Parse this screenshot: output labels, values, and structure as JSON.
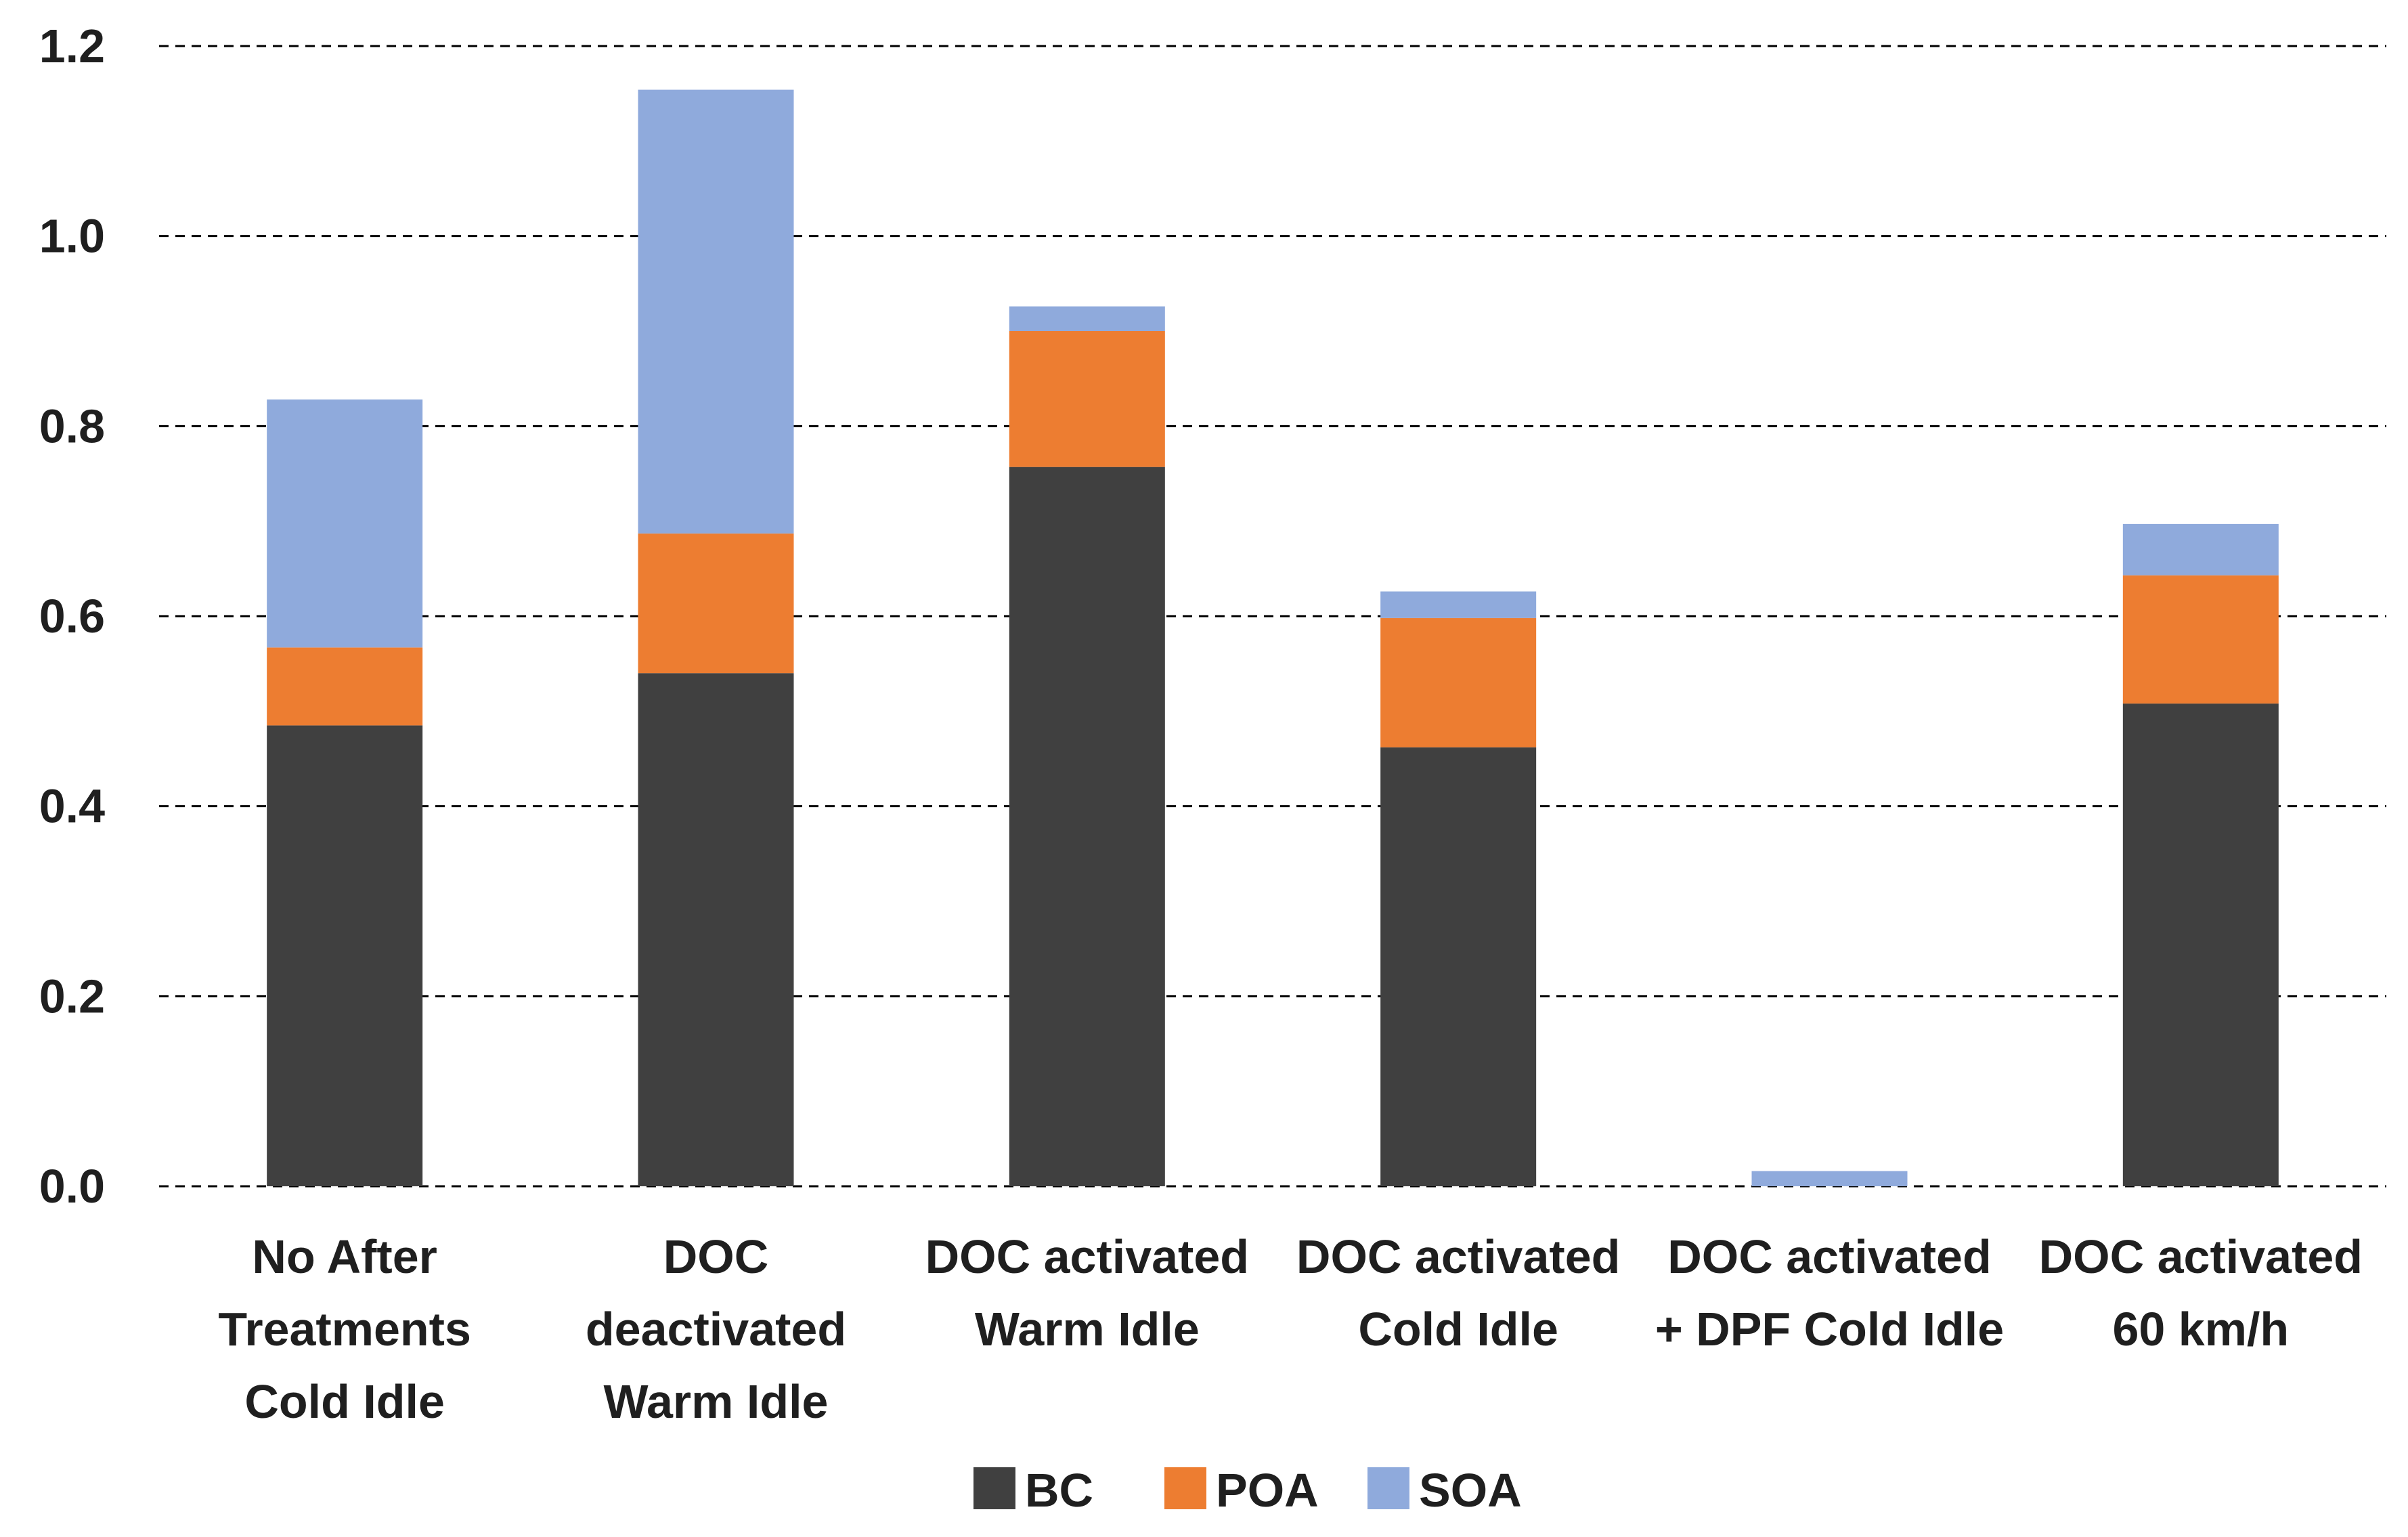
{
  "chart_data": {
    "type": "bar",
    "stacked": true,
    "title": "",
    "xlabel": "",
    "ylabel": "",
    "ylim": [
      0,
      1.2
    ],
    "yticks": [
      "0.0",
      "0.2",
      "0.4",
      "0.6",
      "0.8",
      "1.0",
      "1.2"
    ],
    "ytick_values": [
      0,
      0.2,
      0.4,
      0.6,
      0.8,
      1.0,
      1.2
    ],
    "grid": true,
    "legend_position": "bottom",
    "categories": [
      [
        "No After",
        "Treatments",
        "Cold Idle"
      ],
      [
        "DOC",
        "deactivated",
        "Warm Idle"
      ],
      [
        "DOC activated",
        "Warm Idle"
      ],
      [
        "DOC activated",
        "Cold Idle"
      ],
      [
        "DOC activated",
        "+ DPF Cold Idle"
      ],
      [
        "DOC activated",
        "60 km/h"
      ]
    ],
    "series": [
      {
        "name": "BC",
        "color": "#404040",
        "values": [
          0.485,
          0.54,
          0.757,
          0.462,
          0.0,
          0.508
        ]
      },
      {
        "name": "POA",
        "color": "#ed7d31",
        "values": [
          0.082,
          0.147,
          0.143,
          0.136,
          0.0,
          0.135
        ]
      },
      {
        "name": "SOA",
        "color": "#8faadc",
        "values": [
          0.261,
          0.467,
          0.026,
          0.028,
          0.016,
          0.054
        ]
      }
    ]
  }
}
